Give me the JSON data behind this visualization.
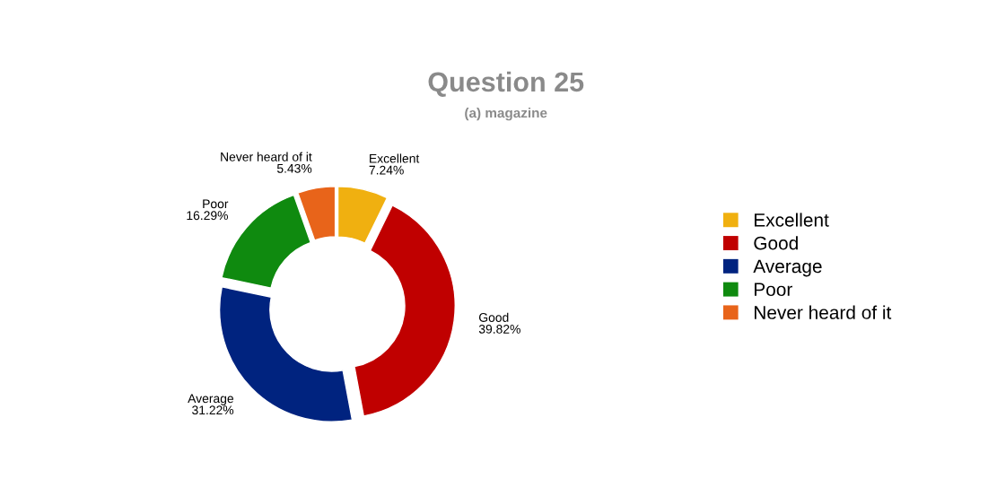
{
  "chart_data": {
    "type": "donut",
    "title": "Question 25",
    "subtitle": "(a) magazine",
    "categories": [
      "Excellent",
      "Good",
      "Average",
      "Poor",
      "Never heard of it"
    ],
    "values": [
      7.24,
      39.82,
      31.22,
      16.29,
      5.43
    ],
    "value_labels": [
      "7.24%",
      "39.82%",
      "31.22%",
      "16.29%",
      "5.43%"
    ],
    "colors": [
      "#f0b010",
      "#c00000",
      "#00237f",
      "#0f8a0f",
      "#e8641a"
    ],
    "legend": "right"
  }
}
